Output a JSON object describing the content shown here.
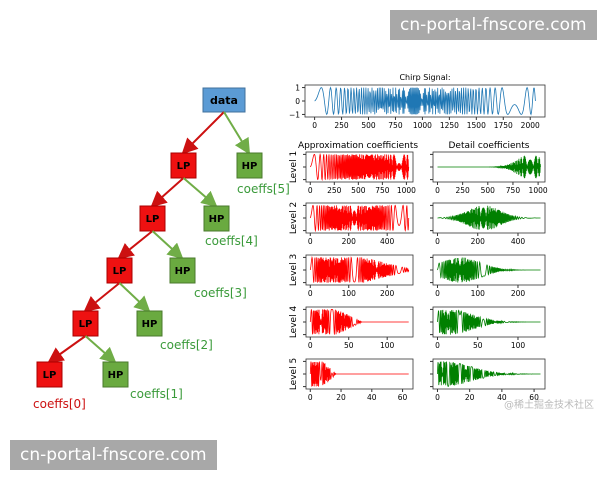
{
  "watermarks": {
    "top": "cn-portal-fnscore.com",
    "bottom": "cn-portal-fnscore.com",
    "corner": "@稀土掘金技术社区"
  },
  "tree": {
    "root": "data",
    "lp": "LP",
    "hp": "HP",
    "coeffs": [
      "coeffs[0]",
      "coeffs[1]",
      "coeffs[2]",
      "coeffs[3]",
      "coeffs[4]",
      "coeffs[5]"
    ],
    "colors": {
      "root": "#5b9bd5",
      "lp": "#ee1111",
      "hp": "#6aaa40",
      "lp_arrow": "#cc1111",
      "hp_arrow": "#70ad47"
    }
  },
  "chart_data": [
    {
      "type": "line",
      "title": "Chirp Signal:",
      "xticks": [
        "0",
        "250",
        "500",
        "750",
        "1000",
        "1250",
        "1500",
        "1750",
        "2000"
      ],
      "xlim": [
        0,
        2048
      ],
      "yticks": [
        "1",
        "0",
        "−1"
      ],
      "ylim": [
        -1,
        1
      ],
      "color": "#1f77b4"
    },
    {
      "type": "line",
      "column_titles": [
        "Approximation coefficients",
        "Detail coefficients"
      ],
      "levels": [
        {
          "label": "Level 1",
          "xticks_approx": [
            "0",
            "250",
            "500",
            "750",
            "1000"
          ],
          "xticks_detail": [
            "0",
            "250",
            "500",
            "750",
            "1000"
          ],
          "xmax": 1024
        },
        {
          "label": "Level 2",
          "xticks_approx": [
            "0",
            "200",
            "400"
          ],
          "xticks_detail": [
            "0",
            "200",
            "400"
          ],
          "xmax": 512
        },
        {
          "label": "Level 3",
          "xticks_approx": [
            "0",
            "100",
            "200"
          ],
          "xticks_detail": [
            "0",
            "100",
            "200"
          ],
          "xmax": 256
        },
        {
          "label": "Level 4",
          "xticks_approx": [
            "0",
            "50",
            "100"
          ],
          "xticks_detail": [
            "0",
            "50",
            "100"
          ],
          "xmax": 128
        },
        {
          "label": "Level 5",
          "xticks_approx": [
            "0",
            "20",
            "40",
            "60"
          ],
          "xticks_detail": [
            "0",
            "20",
            "40",
            "60"
          ],
          "xmax": 64
        }
      ],
      "approx_color": "#ff0000",
      "detail_color": "#008000"
    }
  ]
}
